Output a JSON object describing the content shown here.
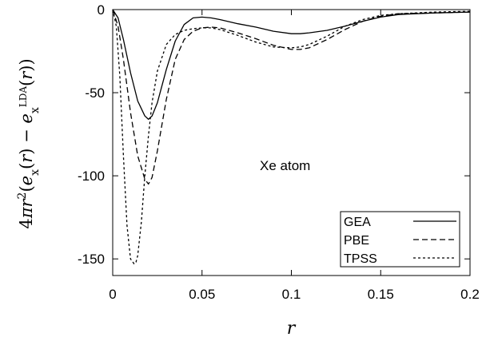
{
  "chart_data": {
    "type": "line",
    "title": "",
    "xlabel": "r",
    "ylabel": "4πr²(e_x(r) − e_x^LDA(r))",
    "xlim": [
      0,
      0.2
    ],
    "ylim": [
      -160,
      0
    ],
    "xticks": [
      0,
      0.05,
      0.1,
      0.15,
      0.2
    ],
    "xtick_labels": [
      "0",
      "0.05",
      "0.1",
      "0.15",
      "0.2"
    ],
    "yticks": [
      0,
      -50,
      -100,
      -150
    ],
    "ytick_labels": [
      "0",
      "-50",
      "-100",
      "-150"
    ],
    "grid": false,
    "legend_position": "bottom-right",
    "annotation": "Xe atom",
    "series": [
      {
        "name": "GEA",
        "dash": "solid",
        "x": [
          0,
          0.003,
          0.006,
          0.01,
          0.014,
          0.018,
          0.02,
          0.022,
          0.025,
          0.03,
          0.035,
          0.04,
          0.045,
          0.05,
          0.055,
          0.06,
          0.07,
          0.08,
          0.09,
          0.1,
          0.105,
          0.11,
          0.12,
          0.13,
          0.14,
          0.15,
          0.16,
          0.18,
          0.2
        ],
        "y": [
          0,
          -5,
          -18,
          -38,
          -55,
          -64,
          -66,
          -64,
          -56,
          -36,
          -19,
          -9,
          -5,
          -4.5,
          -5,
          -6,
          -8.5,
          -10.5,
          -13,
          -14.5,
          -14.5,
          -14,
          -12.5,
          -10,
          -7,
          -4.5,
          -3,
          -2,
          -1.5
        ]
      },
      {
        "name": "PBE",
        "dash": "dashed",
        "x": [
          0,
          0.003,
          0.006,
          0.01,
          0.014,
          0.018,
          0.02,
          0.022,
          0.025,
          0.03,
          0.035,
          0.04,
          0.045,
          0.05,
          0.055,
          0.06,
          0.07,
          0.08,
          0.09,
          0.1,
          0.105,
          0.11,
          0.12,
          0.13,
          0.14,
          0.15,
          0.16,
          0.18,
          0.2
        ],
        "y": [
          0,
          -10,
          -30,
          -62,
          -88,
          -102,
          -105,
          -101,
          -85,
          -54,
          -30,
          -18,
          -13,
          -11,
          -10.5,
          -11,
          -14,
          -17.5,
          -21.5,
          -24,
          -24,
          -23,
          -18,
          -12,
          -7,
          -4,
          -2.5,
          -2,
          -1.5
        ]
      },
      {
        "name": "TPSS",
        "dash": "dotted",
        "x": [
          0,
          0.002,
          0.004,
          0.006,
          0.008,
          0.01,
          0.012,
          0.013,
          0.014,
          0.016,
          0.018,
          0.02,
          0.022,
          0.025,
          0.03,
          0.035,
          0.04,
          0.045,
          0.05,
          0.055,
          0.06,
          0.07,
          0.08,
          0.09,
          0.1,
          0.105,
          0.11,
          0.12,
          0.13,
          0.14,
          0.15,
          0.16,
          0.18,
          0.2
        ],
        "y": [
          0,
          -10,
          -40,
          -88,
          -130,
          -150,
          -153,
          -152,
          -148,
          -128,
          -100,
          -76,
          -56,
          -37,
          -21,
          -15,
          -12.5,
          -11.5,
          -11,
          -11,
          -12,
          -15.5,
          -19.5,
          -22.5,
          -23,
          -22.5,
          -21,
          -16,
          -10,
          -6,
          -3.5,
          -2.5,
          -1.5,
          -1
        ]
      }
    ]
  }
}
